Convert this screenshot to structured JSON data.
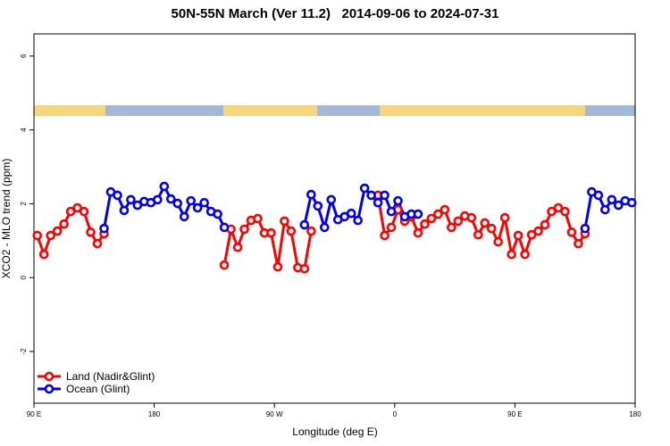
{
  "chart_data": {
    "type": "line",
    "title": "50N-55N March (Ver 11.2)   2014-09-06 to 2024-07-31",
    "x_label": "Longitude (deg E)",
    "y_label": "XCO2 - MLO trend (ppm)",
    "x": [
      92.5,
      97.5,
      102.5,
      107.5,
      112.5,
      117.5,
      122.5,
      127.5,
      132.5,
      137.5,
      142.5,
      147.5,
      152.5,
      157.5,
      162.5,
      167.5,
      172.5,
      177.5,
      182.5,
      187.5,
      192.5,
      197.5,
      202.5,
      207.5,
      212.5,
      217.5,
      222.5,
      227.5,
      232.5,
      237.5,
      242.5,
      247.5,
      252.5,
      257.5,
      262.5,
      267.5,
      272.5,
      277.5,
      282.5,
      287.5,
      292.5,
      297.5,
      302.5,
      307.5,
      312.5,
      317.5,
      322.5,
      327.5,
      332.5,
      337.5,
      342.5,
      347.5,
      352.5,
      357.5,
      362.5,
      367.5,
      372.5,
      377.5,
      382.5,
      387.5,
      392.5,
      397.5,
      402.5,
      407.5,
      412.5,
      417.5,
      422.5,
      427.5,
      432.5,
      437.5,
      442.5,
      447.5,
      452.5,
      457.5,
      462.5,
      467.5,
      472.5,
      477.5,
      482.5,
      487.5,
      492.5,
      497.5,
      502.5,
      507.5,
      512.5,
      517.5,
      522.5,
      527.5,
      532.5,
      537.5
    ],
    "series": [
      {
        "name": "Land (Nadir&Glint)",
        "color": "#ff0000",
        "values": [
          1.14,
          0.63,
          1.14,
          1.26,
          1.45,
          1.79,
          1.89,
          1.79,
          1.23,
          0.92,
          1.19,
          null,
          null,
          null,
          null,
          null,
          null,
          null,
          null,
          null,
          null,
          null,
          null,
          null,
          null,
          null,
          null,
          null,
          0.34,
          1.31,
          0.82,
          1.31,
          1.55,
          1.6,
          1.21,
          1.21,
          0.29,
          1.53,
          1.26,
          0.27,
          0.24,
          1.26,
          null,
          null,
          null,
          null,
          null,
          null,
          null,
          null,
          null,
          2.23,
          1.14,
          1.36,
          1.84,
          1.53,
          1.65,
          1.21,
          1.45,
          1.6,
          1.72,
          1.84,
          1.36,
          1.53,
          1.67,
          1.62,
          1.16,
          1.48,
          1.33,
          0.97,
          1.62,
          0.63,
          1.14,
          0.63,
          1.16,
          1.26,
          1.43,
          1.79,
          1.89,
          1.79,
          1.23,
          0.92,
          1.19,
          null,
          null,
          null,
          null,
          null,
          null,
          null
        ]
      },
      {
        "name": "Ocean (Glint)",
        "color": "#0000ee",
        "values": [
          null,
          null,
          null,
          null,
          null,
          null,
          null,
          null,
          null,
          null,
          1.33,
          2.32,
          2.23,
          1.82,
          2.11,
          1.96,
          2.06,
          2.03,
          2.11,
          2.47,
          2.13,
          2.01,
          1.65,
          2.08,
          1.89,
          2.03,
          1.79,
          1.72,
          1.36,
          null,
          null,
          null,
          null,
          null,
          null,
          null,
          null,
          null,
          null,
          null,
          1.43,
          2.25,
          1.94,
          1.36,
          2.11,
          1.57,
          1.65,
          1.74,
          1.55,
          2.42,
          2.23,
          2.03,
          2.23,
          1.79,
          2.08,
          1.65,
          1.72,
          1.72,
          null,
          null,
          null,
          null,
          null,
          null,
          null,
          null,
          null,
          null,
          null,
          null,
          null,
          null,
          null,
          null,
          null,
          null,
          null,
          null,
          null,
          null,
          null,
          null,
          1.33,
          2.32,
          2.23,
          1.84,
          2.11,
          1.96,
          2.08,
          2.03
        ]
      }
    ],
    "xlim": [
      90,
      540
    ],
    "xticks": [
      {
        "value": 90,
        "label": "90 E"
      },
      180,
      {
        "value": 270,
        "label": "90 W"
      },
      {
        "value": 360,
        "label": "0"
      },
      {
        "value": 450,
        "label": "90 E"
      },
      {
        "value": 540,
        "label": "180"
      }
    ],
    "ylim": [
      -3.4,
      6.6
    ],
    "yticks": [
      -2,
      0,
      2,
      4,
      6
    ],
    "grid": false,
    "legend": "bottom-left"
  }
}
